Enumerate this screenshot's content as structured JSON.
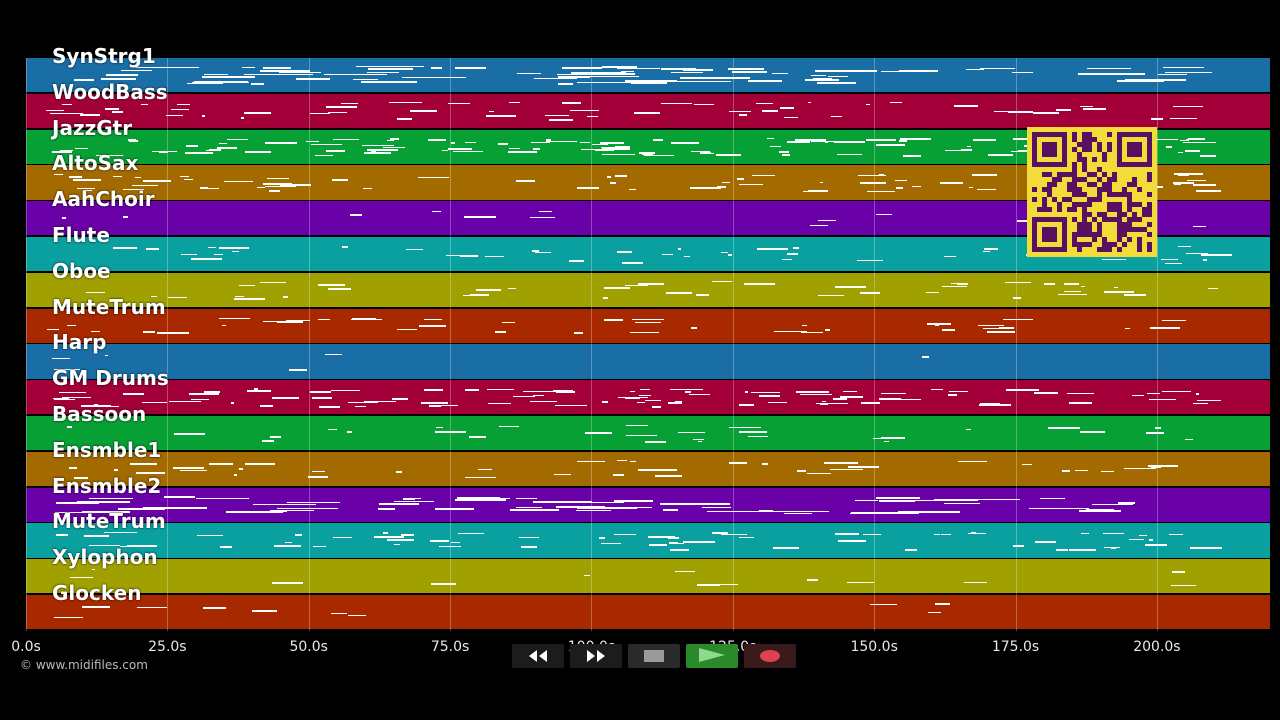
{
  "tracks": [
    {
      "name": "SynStrg1",
      "color": "#1a6ea6"
    },
    {
      "name": "WoodBass",
      "color": "#a3003a"
    },
    {
      "name": "JazzGtr",
      "color": "#06a034"
    },
    {
      "name": "AltoSax",
      "color": "#a36a00"
    },
    {
      "name": "AahChoir",
      "color": "#6a00a8"
    },
    {
      "name": "Flute",
      "color": "#0aa0a0"
    },
    {
      "name": "Oboe",
      "color": "#a0a000"
    },
    {
      "name": "MuteTrum",
      "color": "#a82800"
    },
    {
      "name": "Harp",
      "color": "#1a6ea6"
    },
    {
      "name": "GM Drums",
      "color": "#a3003a"
    },
    {
      "name": "Bassoon",
      "color": "#06a034"
    },
    {
      "name": "Ensmble1",
      "color": "#a36a00"
    },
    {
      "name": "Ensmble2",
      "color": "#6a00a8"
    },
    {
      "name": "MuteTrum",
      "color": "#0aa0a0"
    },
    {
      "name": "Xylophon",
      "color": "#a0a000"
    },
    {
      "name": "Glocken",
      "color": "#a82800"
    }
  ],
  "timeline": {
    "ticks": [
      "0.0s",
      "25.0s",
      "50.0s",
      "75.0s",
      "100.0s",
      "125.0s",
      "150.0s",
      "175.0s",
      "200.0s"
    ],
    "tick_seconds": [
      0,
      25,
      50,
      75,
      100,
      125,
      150,
      175,
      200
    ],
    "max_seconds": 220
  },
  "copyright": "© www.midifiles.com",
  "transport": {
    "rewind_icon": "rewind-icon",
    "forward_icon": "fast-forward-icon",
    "stop_icon": "stop-icon",
    "play_icon": "play-icon",
    "record_icon": "record-icon",
    "play_color": "#2a8a2a",
    "record_color": "#e04050"
  },
  "overlay": {
    "qr_color": "#f2dc3a",
    "qr_ink": "#5a1060"
  }
}
